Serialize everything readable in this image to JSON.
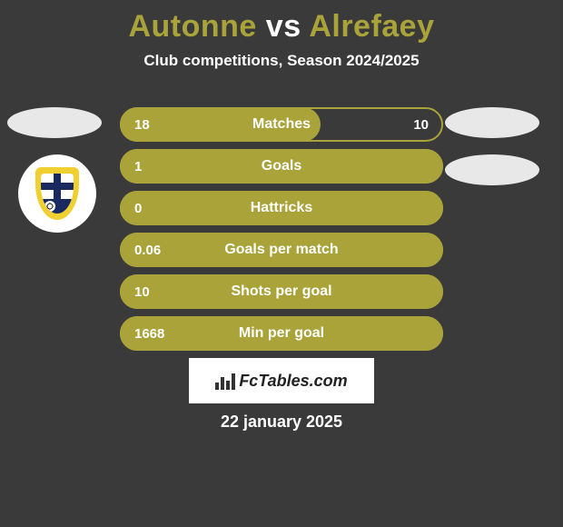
{
  "header": {
    "title_left": "Autonne",
    "title_vs": "vs",
    "title_right": "Alrefaey",
    "title_color_left": "#a9a33a",
    "title_color_vs": "#ffffff",
    "title_color_right": "#a9a33a",
    "subtitle": "Club competitions, Season 2024/2025"
  },
  "colors": {
    "bar_fill": "#a9a33a",
    "bar_border": "#a9a33a",
    "background": "#3a3a3a",
    "ellipse": "#e8e8e8",
    "text": "#ffffff"
  },
  "bars": [
    {
      "label": "Matches",
      "left": "18",
      "right": "10",
      "fill_pct": 62,
      "show_right": true
    },
    {
      "label": "Goals",
      "left": "1",
      "right": "",
      "fill_pct": 100,
      "show_right": false
    },
    {
      "label": "Hattricks",
      "left": "0",
      "right": "",
      "fill_pct": 100,
      "show_right": false
    },
    {
      "label": "Goals per match",
      "left": "0.06",
      "right": "",
      "fill_pct": 100,
      "show_right": false
    },
    {
      "label": "Shots per goal",
      "left": "10",
      "right": "",
      "fill_pct": 100,
      "show_right": false
    },
    {
      "label": "Min per goal",
      "left": "1668",
      "right": "",
      "fill_pct": 100,
      "show_right": false
    }
  ],
  "footer": {
    "brand": "FcTables.com",
    "date": "22 january 2025"
  }
}
